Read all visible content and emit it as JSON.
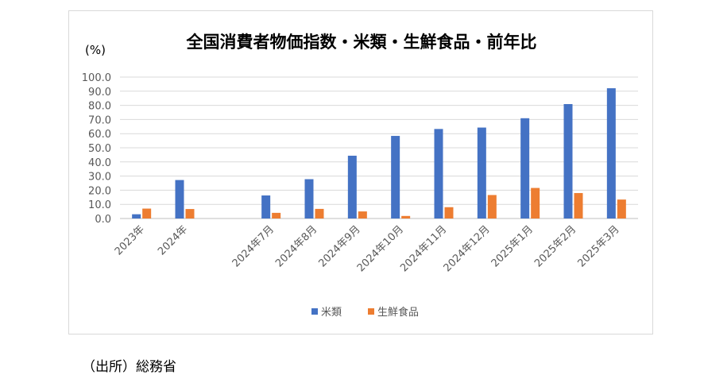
{
  "chart_data": {
    "type": "bar",
    "title": "全国消費者物価指数・米類・生鮮食品・前年比",
    "unit_label": "(%)",
    "categories": [
      "2023年",
      "2024年",
      "",
      "2024年7月",
      "2024年8月",
      "2024年9月",
      "2024年10月",
      "2024年11月",
      "2024年12月",
      "2025年1月",
      "2025年2月",
      "2025年3月"
    ],
    "series": [
      {
        "name": "米類",
        "color": "#4472C4",
        "values": [
          3.0,
          27.2,
          null,
          16.3,
          27.8,
          44.4,
          58.4,
          63.3,
          64.3,
          70.9,
          80.9,
          92.1
        ]
      },
      {
        "name": "生鮮食品",
        "color": "#ED7D31",
        "values": [
          7.0,
          6.7,
          null,
          4.0,
          6.8,
          5.0,
          1.8,
          8.0,
          16.6,
          21.6,
          18.0,
          13.4
        ]
      }
    ],
    "ylim": [
      0,
      100
    ],
    "yticks": [
      "0.0",
      "10.0",
      "20.0",
      "30.0",
      "40.0",
      "50.0",
      "60.0",
      "70.0",
      "80.0",
      "90.0",
      "100.0"
    ],
    "grid": true,
    "legend_position": "bottom"
  },
  "source_note": "（出所）総務省"
}
